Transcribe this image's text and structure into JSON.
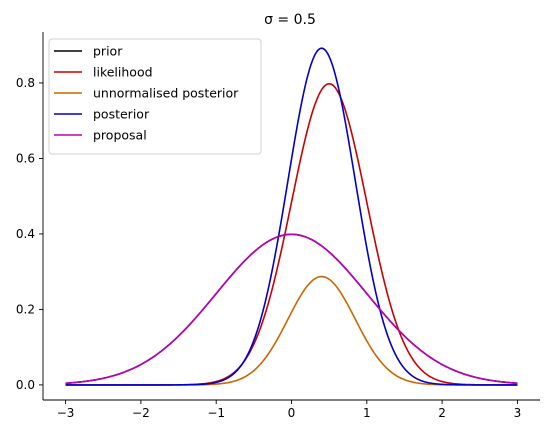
{
  "chart_data": {
    "type": "line",
    "title": "σ = 0.5",
    "xlim": [
      -3.3,
      3.3
    ],
    "ylim": [
      -0.04,
      0.935
    ],
    "xticks": [
      -3,
      -2,
      -1,
      0,
      1,
      2,
      3
    ],
    "xtick_labels": [
      "−3",
      "−2",
      "−1",
      "0",
      "1",
      "2",
      "3"
    ],
    "yticks": [
      0.0,
      0.2,
      0.4,
      0.6,
      0.8
    ],
    "ytick_labels": [
      "0.0",
      "0.2",
      "0.4",
      "0.6",
      "0.8"
    ],
    "x_domain": [
      -3,
      3
    ],
    "grid": false,
    "spines": "left-bottom",
    "legend_position": "top-left",
    "series": [
      {
        "name": "prior",
        "color": "#000000",
        "kind": "normal_pdf",
        "mu": 0.0,
        "sigma": 1.0,
        "scale": 1.0
      },
      {
        "name": "likelihood",
        "color": "#cc0000",
        "kind": "normal_pdf",
        "mu": 0.5,
        "sigma": 0.5,
        "scale": 1.0
      },
      {
        "name": "unnormalised posterior",
        "color": "#cc6600",
        "kind": "normal_pdf",
        "mu": 0.4,
        "sigma": 0.4472,
        "scale": 0.3217
      },
      {
        "name": "posterior",
        "color": "#0000cc",
        "kind": "normal_pdf",
        "mu": 0.4,
        "sigma": 0.4472,
        "scale": 1.0
      },
      {
        "name": "proposal",
        "color": "#bb00bb",
        "kind": "normal_pdf",
        "mu": 0.0,
        "sigma": 1.0,
        "scale": 1.0
      }
    ]
  }
}
